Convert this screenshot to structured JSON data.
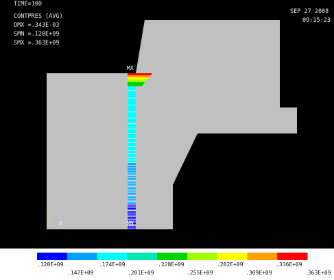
{
  "header": {
    "time_label": "TIME=100",
    "result_label": "CONTPRES (AVG)",
    "dmx": "DMX =.343E-03",
    "smn": "SMN =.120E+09",
    "smx": "SMX =.363E+09",
    "date": "SEP 27 2008",
    "time": "09:15:23"
  },
  "markers": {
    "mx": "MX",
    "mn": "MN",
    "x": "X"
  },
  "colors": {
    "background": "#000000",
    "model": "#c0c0c0",
    "legend": [
      "#0000ff",
      "#00a0ff",
      "#00ffff",
      "#00e6b4",
      "#00d200",
      "#a0ff00",
      "#ffff00",
      "#ffa000",
      "#ff0000"
    ]
  },
  "legend": {
    "top_labels": [
      ".120E+09",
      ".174E+09",
      ".228E+09",
      ".282E+09",
      ".336E+09"
    ],
    "bottom_labels": [
      ".147E+09",
      ".201E+09",
      ".255E+09",
      ".309E+09",
      ".363E+09"
    ]
  }
}
